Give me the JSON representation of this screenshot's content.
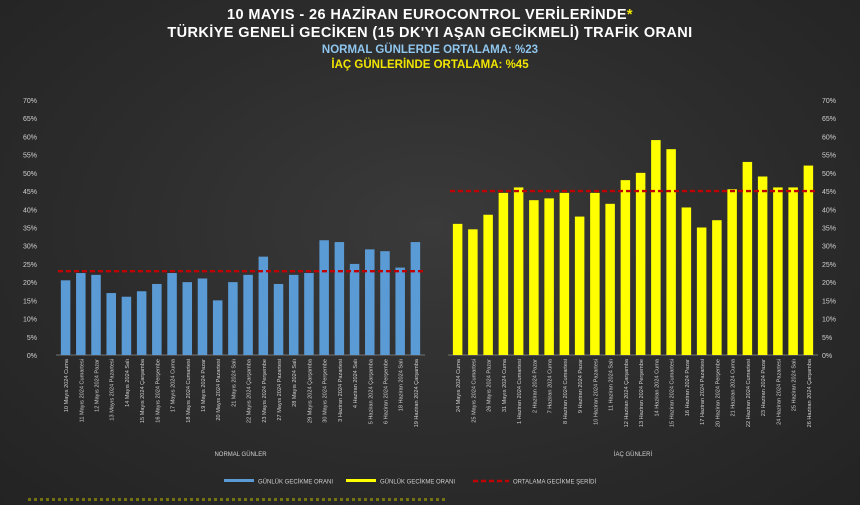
{
  "header": {
    "title_line1": "10 MAYIS - 26 HAZİRAN EUROCONTROL VERİLERİNDE",
    "title_star": "*",
    "title_line2": "TÜRKİYE GENELİ GECİKEN (15 DK'YI AŞAN GECİKMELİ) TRAFİK ORANI",
    "subtitle_normal": "NORMAL GÜNLERDE ORTALAMA: %23",
    "subtitle_iac": "İAÇ GÜNLERİNDE ORTALAMA: %45"
  },
  "colors": {
    "normal_bar": "#5b9bd5",
    "iac_bar": "#ffff00",
    "average_line": "#c00000",
    "axis_text": "#d0d0d0",
    "background": "#2e2e2e"
  },
  "chart_data": {
    "type": "bar",
    "yaxis": {
      "ylim": [
        0,
        70
      ],
      "tick_step": 5,
      "tick_labels": [
        "0%",
        "5%",
        "10%",
        "15%",
        "20%",
        "25%",
        "30%",
        "35%",
        "40%",
        "45%",
        "50%",
        "55%",
        "60%",
        "65%",
        "70%"
      ],
      "unit": "%",
      "left_and_right": true
    },
    "groups": [
      {
        "label": "NORMAL GÜNLER",
        "color": "#5b9bd5",
        "average": 23,
        "categories": [
          "10 Mayıs 2024 Cuma",
          "11 Mayıs 2024 Cumartesi",
          "12 Mayıs 2024 Pazar",
          "13 Mayıs 2024 Pazartesi",
          "14 Mayıs 2024 Salı",
          "15 Mayıs 2024 Çarşamba",
          "16 Mayıs 2024 Perşembe",
          "17 Mayıs 2024 Cuma",
          "18 Mayıs 2024 Cumartesi",
          "19 Mayıs 2024 Pazar",
          "20 Mayıs 2024 Pazartesi",
          "21 Mayıs 2024 Salı",
          "22 Mayıs 2024 Çarşamba",
          "23 Mayıs 2024 Perşembe",
          "27 Mayıs 2024 Pazartesi",
          "28 Mayıs 2024 Salı",
          "29 Mayıs 2024 Çarşamba",
          "30 Mayıs 2024 Perşembe",
          "3 Haziran 2024 Pazartesi",
          "4 Haziran 2024 Salı",
          "5 Haziran 2024 Çarşamba",
          "6 Haziran 2024 Perşembe",
          "18 Haziran 2024 Salı",
          "19 Haziran 2024 Çarşamba"
        ],
        "values": [
          20.5,
          22.5,
          22,
          17,
          16,
          17.5,
          19.5,
          22.5,
          20,
          21,
          15,
          20,
          22,
          27,
          19.5,
          22,
          22.5,
          31.5,
          31,
          25,
          29,
          28.5,
          24,
          31
        ]
      },
      {
        "label": "İAÇ GÜNLERİ",
        "color": "#ffff00",
        "average": 45,
        "categories": [
          "24 Mayıs 2024 Cuma",
          "25 Mayıs 2024 Cumartesi",
          "26 Mayıs 2024 Pazar",
          "31 Mayıs 2024 Cuma",
          "1 Haziran 2024 Cumartesi",
          "2 Haziran 2024 Pazar",
          "7 Haziran 2024 Cuma",
          "8 Haziran 2024 Cumartesi",
          "9 Haziran 2024 Pazar",
          "10 Haziran 2024 Pazartesi",
          "11 Haziran 2024 Salı",
          "12 Haziran 2024 Çarşamba",
          "13 Haziran 2024 Perşembe",
          "14 Haziran 2024 Cuma",
          "15 Haziran 2024 Cumartesi",
          "16 Haziran 2024 Pazar",
          "17 Haziran 2024 Pazartesi",
          "20 Haziran 2024 Perşembe",
          "21 Haziran 2024 Cuma",
          "22 Haziran 2024 Cumartesi",
          "23 Haziran 2024 Pazar",
          "24 Haziran 2024 Pazartesi",
          "25 Haziran 2024 Salı",
          "26 Haziran 2024 Çarşamba"
        ],
        "values": [
          36,
          34.5,
          38.5,
          44.5,
          46,
          42.5,
          43,
          44.5,
          38,
          44.5,
          41.5,
          48,
          50,
          59,
          56.5,
          40.5,
          35,
          37,
          45.5,
          53,
          49,
          46,
          46,
          52
        ]
      }
    ],
    "legend": {
      "position": "bottom",
      "items": [
        {
          "name": "GÜNLÜK GECİKME ORANI",
          "color": "#5b9bd5",
          "kind": "bar"
        },
        {
          "name": "GÜNLÜK GECİKME ORANI",
          "color": "#ffff00",
          "kind": "bar"
        },
        {
          "name": "ORTALAMA GECİKME ŞERİDİ",
          "color": "#c00000",
          "kind": "dashed-line"
        }
      ]
    },
    "grid": false
  }
}
